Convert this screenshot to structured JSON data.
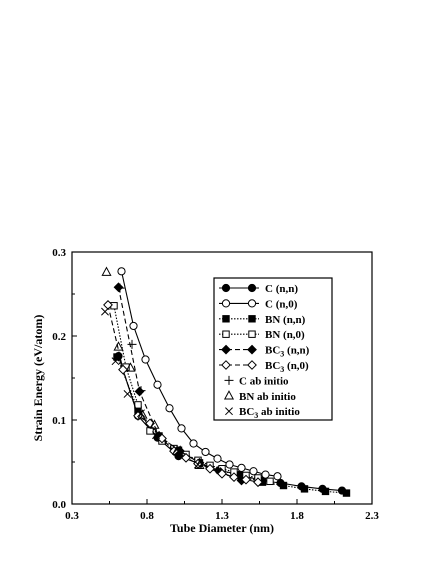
{
  "chart_data": {
    "type": "line",
    "xlabel": "Tube Diameter (nm)",
    "ylabel": "Strain Energy (eV/atom)",
    "xlim": [
      0.3,
      2.3
    ],
    "ylim": [
      0.0,
      0.3
    ],
    "xticks": [
      0.3,
      0.8,
      1.3,
      1.8,
      2.3
    ],
    "xtick_labels": [
      "0.3",
      "0.8",
      "1.3",
      "1.8",
      "2.3"
    ],
    "yticks": [
      0.0,
      0.1,
      0.2,
      0.3
    ],
    "ytick_labels": [
      "0.0",
      "0.1",
      "0.2",
      "0.3"
    ],
    "grid": false,
    "legend_position": "top-right",
    "series": [
      {
        "name": "C (n,n)",
        "line": "solid",
        "marker": "circle",
        "filled": true,
        "x": [
          0.61,
          0.74,
          0.87,
          1.01,
          1.15,
          1.28,
          1.42,
          1.56,
          1.69,
          1.83,
          1.97,
          2.1
        ],
        "y": [
          0.176,
          0.105,
          0.079,
          0.057,
          0.048,
          0.04,
          0.035,
          0.028,
          0.025,
          0.021,
          0.018,
          0.016
        ]
      },
      {
        "name": "C (n,0)",
        "line": "solid",
        "marker": "circle",
        "filled": false,
        "x": [
          0.63,
          0.71,
          0.79,
          0.87,
          0.95,
          1.03,
          1.11,
          1.19,
          1.27,
          1.35,
          1.43,
          1.51,
          1.59,
          1.67
        ],
        "y": [
          0.277,
          0.212,
          0.172,
          0.142,
          0.114,
          0.09,
          0.072,
          0.062,
          0.054,
          0.047,
          0.043,
          0.039,
          0.035,
          0.033
        ]
      },
      {
        "name": "BN (n,n)",
        "line": "dotted",
        "marker": "square",
        "filled": true,
        "x": [
          0.6,
          0.74,
          0.88,
          1.01,
          1.15,
          1.29,
          1.43,
          1.57,
          1.71,
          1.85,
          1.99,
          2.13
        ],
        "y": [
          0.175,
          0.112,
          0.081,
          0.064,
          0.049,
          0.04,
          0.033,
          0.026,
          0.022,
          0.018,
          0.015,
          0.013
        ]
      },
      {
        "name": "BN (n,0)",
        "line": "dotted",
        "marker": "square",
        "filled": false,
        "x": [
          0.58,
          0.66,
          0.74,
          0.82,
          0.9,
          0.98,
          1.06,
          1.14,
          1.22,
          1.3,
          1.38,
          1.46,
          1.54,
          1.62
        ],
        "y": [
          0.236,
          0.163,
          0.118,
          0.087,
          0.075,
          0.066,
          0.059,
          0.052,
          0.046,
          0.042,
          0.038,
          0.034,
          0.031,
          0.027
        ]
      },
      {
        "name": "BC3 (n,n)",
        "line": "dashed",
        "marker": "diamond",
        "filled": true,
        "x": [
          0.61,
          0.75,
          0.88,
          1.02,
          1.15,
          1.29,
          1.43
        ],
        "y": [
          0.258,
          0.134,
          0.081,
          0.063,
          0.049,
          0.038,
          0.028
        ]
      },
      {
        "name": "BC3 (n,0)",
        "line": "dashed",
        "marker": "diamond",
        "filled": false,
        "x": [
          0.54,
          0.64,
          0.74,
          0.82,
          0.9,
          0.98,
          1.06,
          1.14,
          1.22,
          1.3,
          1.38,
          1.46,
          1.54
        ],
        "y": [
          0.237,
          0.16,
          0.105,
          0.096,
          0.078,
          0.063,
          0.055,
          0.048,
          0.042,
          0.036,
          0.032,
          0.029,
          0.026
        ]
      },
      {
        "name": "C ab initio",
        "line": "none",
        "marker": "plus",
        "filled": false,
        "x": [
          0.62,
          0.7,
          0.76
        ],
        "y": [
          0.257,
          0.19,
          0.135
        ]
      },
      {
        "name": "BN ab initio",
        "line": "none",
        "marker": "triangle",
        "filled": false,
        "x": [
          0.53,
          0.61,
          0.69,
          0.77,
          0.85,
          1.0,
          1.15
        ],
        "y": [
          0.276,
          0.187,
          0.162,
          0.106,
          0.094,
          0.063,
          0.046
        ]
      },
      {
        "name": "BC3 ab initio",
        "line": "none",
        "marker": "cross",
        "filled": false,
        "x": [
          0.52,
          0.59,
          0.67,
          0.76,
          0.86,
          1.0,
          1.14
        ],
        "y": [
          0.229,
          0.17,
          0.131,
          0.108,
          0.082,
          0.065,
          0.047
        ]
      }
    ]
  }
}
